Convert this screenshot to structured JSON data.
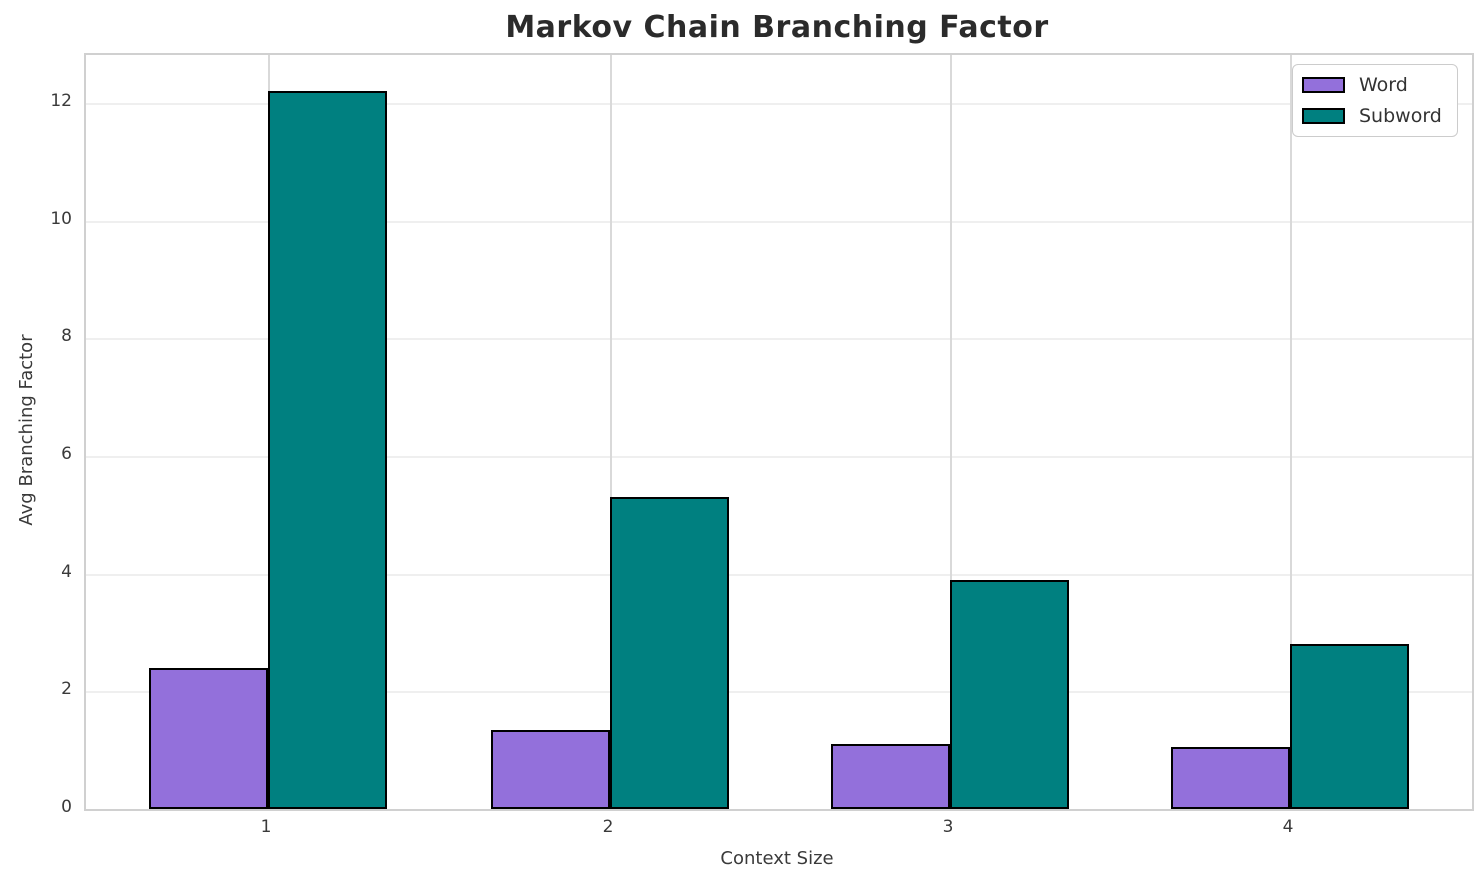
{
  "chart_data": {
    "type": "bar",
    "title": "Markov Chain Branching Factor",
    "xlabel": "Context Size",
    "ylabel": "Avg Branching Factor",
    "categories": [
      "1",
      "2",
      "3",
      "4"
    ],
    "series": [
      {
        "name": "Word",
        "values": [
          2.4,
          1.35,
          1.1,
          1.05
        ],
        "color": "#9370DB"
      },
      {
        "name": "Subword",
        "values": [
          12.2,
          5.3,
          3.9,
          2.8
        ],
        "color": "#008080"
      }
    ],
    "bar_edge_color": "#000000",
    "y_ticks": [
      0,
      2,
      4,
      6,
      8,
      10,
      12
    ],
    "ylim": [
      0,
      12.82
    ],
    "grid": true,
    "legend_position": "upper right",
    "legend_entries": [
      "Word",
      "Subword"
    ],
    "colors": {
      "background": "#ffffff",
      "grid_horizontal": "#efefef",
      "grid_vertical": "#d9d9d9",
      "spine": "#d0d0d0",
      "title_text": "#2b2b2b",
      "tick_text": "#3a3a3a"
    }
  }
}
